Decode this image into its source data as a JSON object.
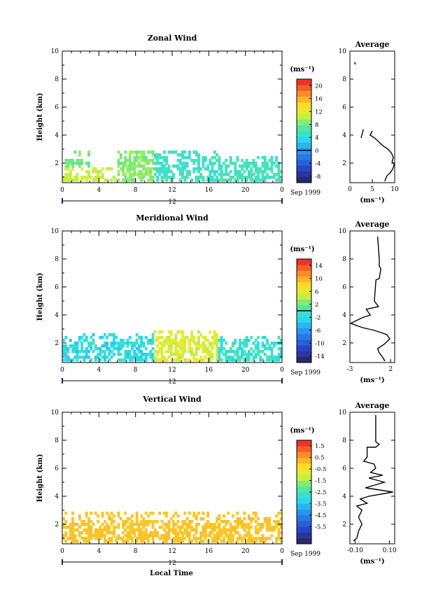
{
  "figure": {
    "x_label": "Local Time",
    "date_label": "Sep 1999",
    "day_label": "12"
  },
  "chart_data": [
    {
      "type": "heatmap",
      "title": "Zonal Wind",
      "ylabel": "Height (km)",
      "xlabel": "Local Time",
      "x_ticks": [
        "0",
        "4",
        "8",
        "12",
        "16",
        "20",
        "0"
      ],
      "y_ticks": [
        "2",
        "4",
        "6",
        "8",
        "10"
      ],
      "xlim": [
        0,
        24
      ],
      "ylim": [
        0.6,
        10
      ],
      "colorbar": {
        "unit": "(ms⁻¹)",
        "range": [
          -10,
          22
        ],
        "ticks": [
          "20",
          "16",
          "12",
          "8",
          "4",
          "0",
          "-4",
          "-8"
        ],
        "zero_line": 0
      },
      "field": {
        "value_range": [
          5,
          12
        ],
        "segments": [
          {
            "t": [
              0,
              6
            ],
            "h": [
              0.7,
              1.6
            ],
            "value": 11
          },
          {
            "t": [
              0,
              3
            ],
            "h": [
              1.6,
              2.8
            ],
            "value": 8
          },
          {
            "t": [
              6,
              10
            ],
            "h": [
              0.7,
              2.8
            ],
            "value": 9
          },
          {
            "t": [
              10,
              17
            ],
            "h": [
              0.7,
              2.9
            ],
            "value": 5.5
          },
          {
            "t": [
              17,
              24
            ],
            "h": [
              0.7,
              2.5
            ],
            "value": 6
          }
        ]
      },
      "average_profile": {
        "title": "Average",
        "xlabel": "(ms⁻¹)",
        "x_ticks": [
          "0",
          "5",
          "10"
        ],
        "xlim": [
          0,
          10
        ],
        "y_ticks": [
          "2",
          "4",
          "6",
          "8",
          "10"
        ],
        "ylim": [
          0.6,
          10
        ],
        "points": [
          [
            7.8,
            0.7
          ],
          [
            8.0,
            0.9
          ],
          [
            8.3,
            1.1
          ],
          [
            9.0,
            1.3
          ],
          [
            9.6,
            1.6
          ],
          [
            9.9,
            1.9
          ],
          [
            9.4,
            2.1
          ],
          [
            9.7,
            2.4
          ],
          [
            9.3,
            2.7
          ],
          [
            8.5,
            3.0
          ],
          [
            7.5,
            3.2
          ],
          [
            6.5,
            3.5
          ],
          [
            5.5,
            3.8
          ],
          [
            4.5,
            4.0
          ],
          [
            5.0,
            4.3
          ]
        ],
        "extra_segments": [
          [
            [
              1.0,
              9.2
            ],
            [
              1.3,
              9.05
            ]
          ],
          [
            [
              2.5,
              3.8
            ],
            [
              3.0,
              4.4
            ]
          ]
        ]
      }
    },
    {
      "type": "heatmap",
      "title": "Meridional Wind",
      "ylabel": "Height (km)",
      "xlabel": "Local Time",
      "x_ticks": [
        "0",
        "4",
        "8",
        "12",
        "16",
        "20",
        "0"
      ],
      "y_ticks": [
        "2",
        "4",
        "6",
        "8",
        "10"
      ],
      "xlim": [
        0,
        24
      ],
      "ylim": [
        0.6,
        10
      ],
      "colorbar": {
        "unit": "(ms⁻¹)",
        "range": [
          -16,
          16
        ],
        "ticks": [
          "14",
          "10",
          "6",
          "2",
          "-2",
          "-6",
          "-10",
          "-14"
        ],
        "zero_line": 0
      },
      "field": {
        "value_range": [
          -4,
          8
        ],
        "segments": [
          {
            "t": [
              0,
              10
            ],
            "h": [
              0.7,
              2.6
            ],
            "value": -2
          },
          {
            "t": [
              10,
              17
            ],
            "h": [
              0.7,
              2.9
            ],
            "value": 6
          },
          {
            "t": [
              17,
              24
            ],
            "h": [
              0.7,
              2.5
            ],
            "value": -1
          }
        ]
      },
      "average_profile": {
        "title": "Average",
        "xlabel": "(ms⁻¹)",
        "x_ticks": [
          "-3",
          "2"
        ],
        "xlim": [
          -3,
          2.5
        ],
        "y_ticks": [
          "2",
          "4",
          "6",
          "8",
          "10"
        ],
        "ylim": [
          0.6,
          10
        ],
        "points": [
          [
            1.3,
            0.7
          ],
          [
            1.0,
            1.0
          ],
          [
            0.6,
            1.3
          ],
          [
            0.4,
            1.6
          ],
          [
            1.2,
            1.9
          ],
          [
            1.9,
            2.3
          ],
          [
            1.5,
            2.6
          ],
          [
            0.0,
            2.9
          ],
          [
            -1.5,
            3.1
          ],
          [
            -2.9,
            3.4
          ],
          [
            -1.5,
            3.8
          ],
          [
            -0.5,
            4.0
          ],
          [
            -1.0,
            4.4
          ],
          [
            0.5,
            4.6
          ],
          [
            0.0,
            5.0
          ],
          [
            0.2,
            6.5
          ],
          [
            0.6,
            6.6
          ],
          [
            0.8,
            7.3
          ],
          [
            0.6,
            7.5
          ],
          [
            0.6,
            8.0
          ],
          [
            0.4,
            9.6
          ]
        ]
      }
    },
    {
      "type": "heatmap",
      "title": "Vertical Wind",
      "ylabel": "Height (km)",
      "xlabel": "Local Time",
      "x_ticks": [
        "0",
        "4",
        "8",
        "12",
        "16",
        "20",
        "0"
      ],
      "y_ticks": [
        "2",
        "4",
        "6",
        "8",
        "10"
      ],
      "xlim": [
        0,
        24
      ],
      "ylim": [
        0.6,
        10
      ],
      "colorbar": {
        "unit": "(ms⁻¹)",
        "range": [
          -7.0,
          2.0
        ],
        "ticks": [
          "1.5",
          "0.5",
          "-0.5",
          "-1.5",
          "-2.5",
          "-3.5",
          "-4.5",
          "-5.5"
        ],
        "zero_line": null
      },
      "field": {
        "value_range": [
          0.0,
          0.5
        ],
        "segments": [
          {
            "t": [
              0,
              24
            ],
            "h": [
              0.7,
              2.8
            ],
            "value": 0.2
          }
        ]
      },
      "average_profile": {
        "title": "Average",
        "xlabel": "(ms⁻¹)",
        "x_ticks": [
          "-0.10",
          "0.10"
        ],
        "xlim": [
          -0.13,
          0.13
        ],
        "y_ticks": [
          "2",
          "4",
          "6",
          "8",
          "10"
        ],
        "ylim": [
          0.6,
          10
        ],
        "points": [
          [
            -0.11,
            0.8
          ],
          [
            -0.09,
            1.0
          ],
          [
            -0.08,
            1.5
          ],
          [
            -0.06,
            2.0
          ],
          [
            -0.08,
            2.5
          ],
          [
            -0.06,
            3.0
          ],
          [
            -0.09,
            3.3
          ],
          [
            -0.03,
            3.5
          ],
          [
            -0.07,
            3.8
          ],
          [
            -0.02,
            4.0
          ],
          [
            0.12,
            4.3
          ],
          [
            -0.04,
            4.6
          ],
          [
            0.07,
            5.0
          ],
          [
            -0.02,
            5.3
          ],
          [
            0.06,
            5.5
          ],
          [
            -0.01,
            5.7
          ],
          [
            0.02,
            6.0
          ],
          [
            0.01,
            6.3
          ],
          [
            -0.05,
            6.5
          ],
          [
            -0.03,
            6.8
          ],
          [
            -0.03,
            7.5
          ],
          [
            0.02,
            7.5
          ],
          [
            0.04,
            7.7
          ],
          [
            0.02,
            7.9
          ],
          [
            0.02,
            9.8
          ]
        ]
      }
    }
  ]
}
